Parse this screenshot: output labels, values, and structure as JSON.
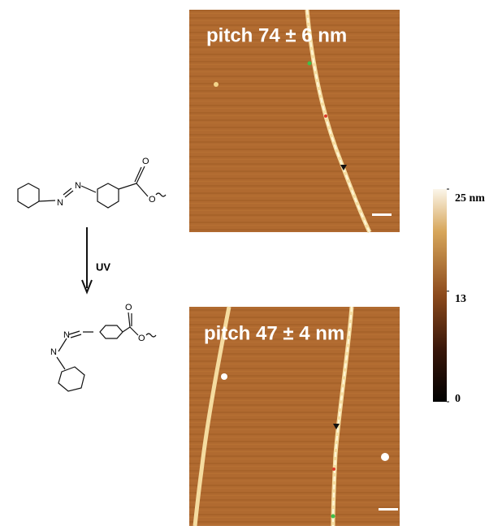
{
  "panels": [
    {
      "label": "pitch 74 ± 6 nm"
    },
    {
      "label": "pitch 47 ± 4 nm"
    }
  ],
  "reaction": {
    "arrow_label": "UV",
    "trans_atoms": [
      "N",
      "N",
      "O",
      "O"
    ],
    "cis_atoms": [
      "N",
      "N",
      "O",
      "O"
    ]
  },
  "colorbar": {
    "range": [
      0,
      25
    ],
    "ticks": [
      {
        "value": 25,
        "label": "25 nm"
      },
      13,
      0
    ]
  }
}
